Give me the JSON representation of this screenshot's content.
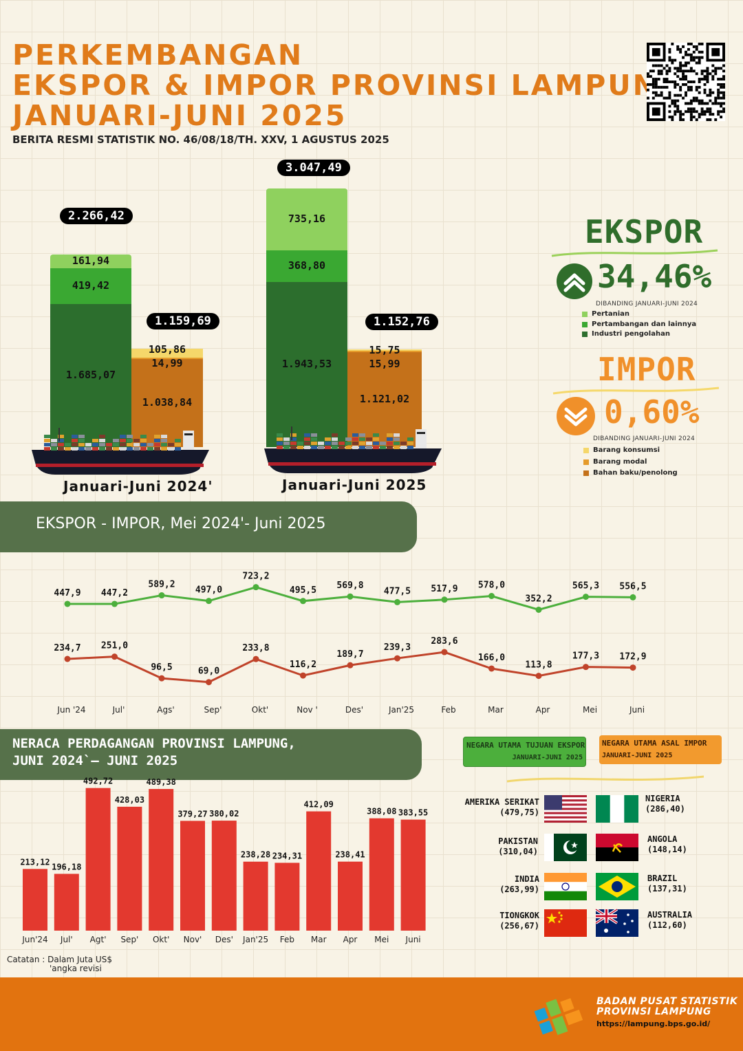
{
  "header": {
    "title_lines": [
      "PERKEMBANGAN",
      "EKSPOR & IMPOR PROVINSI LAMPUNG",
      "JANUARI-JUNI 2025"
    ],
    "subtitle": "BERITA RESMI STATISTIK NO. 46/08/18/TH. XXV, 1 AGUSTUS 2025"
  },
  "colors": {
    "title": "#e07b1a",
    "export_line": "#4caf3c",
    "import_line": "#c0432a",
    "bar": "#e3392f",
    "pertanian": "#8fd15e",
    "pertambangan": "#3aa832",
    "industri": "#2c6e2d",
    "konsumsi": "#f5d76a",
    "modal": "#e59b2b",
    "bahan_baku": "#c4711a",
    "band": "#56714a",
    "footer": "#e2730f"
  },
  "side": {
    "ekspor_title": "EKSPOR",
    "ekspor_change": "34,46%",
    "ekspor_direction": "up",
    "ekspor_note": "DIBANDING JANUARI-JUNI 2024",
    "ekspor_legend": [
      "Pertanian",
      "Pertambangan dan lainnya",
      "Industri pengolahan"
    ],
    "impor_title": "IMPOR",
    "impor_change": "0,60%",
    "impor_direction": "down",
    "impor_note": "DIBANDING JANUARI-JUNI 2024",
    "impor_legend": [
      "Barang konsumsi",
      "Barang modal",
      "Bahan baku/penolong"
    ]
  },
  "band1": {
    "title": "EKSPOR - IMPOR, Mei 2024'- Juni 2025"
  },
  "band2": {
    "title_line1": "NERACA PERDAGANGAN PROVINSI LAMPUNG,",
    "title_line2": "JUNI 2024`— JUNI 2025"
  },
  "countries": {
    "ekspor_header_line1": "NEGARA UTAMA TUJUAN EKSPOR",
    "ekspor_header_line2": "JANUARI-JUNI 2025",
    "impor_header_line1": "NEGARA UTAMA ASAL IMPOR",
    "impor_header_line2": "JANUARI-JUNI 2025",
    "ekspor": [
      {
        "name": "AMERIKA SERIKAT",
        "value": "(479,75)",
        "flag": "us-flag"
      },
      {
        "name": "PAKISTAN",
        "value": "(310,04)",
        "flag": "pakistan-flag"
      },
      {
        "name": "INDIA",
        "value": "(263,99)",
        "flag": "india-flag"
      },
      {
        "name": "TIONGKOK",
        "value": "(256,67)",
        "flag": "china-flag"
      }
    ],
    "impor": [
      {
        "name": "NIGERIA",
        "value": "(286,40)",
        "flag": "nigeria-flag"
      },
      {
        "name": "ANGOLA",
        "value": "(148,14)",
        "flag": "angola-flag"
      },
      {
        "name": "BRAZIL",
        "value": "(137,31)",
        "flag": "brazil-flag"
      },
      {
        "name": "AUSTRALIA",
        "value": "(112,60)",
        "flag": "australia-flag"
      }
    ]
  },
  "note": {
    "line1": "Catatan : Dalam Juta US$",
    "line2": "'angka revisi"
  },
  "footer": {
    "org_line1": "BADAN PUSAT STATISTIK",
    "org_line2": "PROVINSI LAMPUNG",
    "url": "https://lampung.bps.go.id/"
  },
  "chart_data": [
    {
      "type": "bar",
      "stacked": true,
      "categories": [
        "Januari-Juni 2024'",
        "Januari-Juni 2025"
      ],
      "ekspor": {
        "total_labels": [
          "2.266,42",
          "3.047,49"
        ],
        "segments": [
          {
            "key": "industri",
            "labels": [
              "1.685,07",
              "1.943,53"
            ],
            "values": [
              1685.07,
              1943.53
            ]
          },
          {
            "key": "pertambangan",
            "labels": [
              "419,42",
              "368,80"
            ],
            "values": [
              419.42,
              368.8
            ]
          },
          {
            "key": "pertanian",
            "labels": [
              "161,94",
              "735,16"
            ],
            "values": [
              161.94,
              735.16
            ]
          }
        ]
      },
      "impor": {
        "total_labels": [
          "1.159,69",
          "1.152,76"
        ],
        "segments": [
          {
            "key": "bahan_baku",
            "labels": [
              "1.038,84",
              "1.121,02"
            ],
            "values": [
              1038.84,
              1121.02
            ]
          },
          {
            "key": "modal",
            "labels": [
              "14,99",
              "15,99"
            ],
            "values": [
              14.99,
              15.99
            ]
          },
          {
            "key": "konsumsi",
            "labels": [
              "105,86",
              "15,75"
            ],
            "values": [
              105.86,
              15.75
            ]
          }
        ]
      }
    },
    {
      "type": "line",
      "categories": [
        "Jun '24",
        "Jul'",
        "Ags'",
        "Sep'",
        "Okt'",
        "Nov '",
        "Des'",
        "Jan'25",
        "Feb",
        "Mar",
        "Apr",
        "Mei",
        "Juni"
      ],
      "series": [
        {
          "key": "ekspor",
          "values": [
            447.9,
            447.2,
            589.2,
            497.0,
            723.2,
            495.5,
            569.8,
            477.5,
            517.9,
            578.0,
            352.2,
            565.3,
            556.5
          ],
          "labels": [
            "447,9",
            "447,2",
            "589,2",
            "497,0",
            "723,2",
            "495,5",
            "569,8",
            "477,5",
            "517,9",
            "578,0",
            "352,2",
            "565,3",
            "556,5"
          ]
        },
        {
          "key": "impor",
          "values": [
            234.7,
            251.0,
            96.5,
            69.0,
            233.8,
            116.2,
            189.7,
            239.3,
            283.6,
            166.0,
            113.8,
            177.3,
            172.9
          ],
          "labels": [
            "234,7",
            "251,0",
            "96,5",
            "69,0",
            "233,8",
            "116,2",
            "189,7",
            "239,3",
            "283,6",
            "166,0",
            "113,8",
            "177,3",
            "172,9"
          ]
        }
      ]
    },
    {
      "type": "bar",
      "categories": [
        "Jun'24",
        "Jul'",
        "Agt'",
        "Sep'",
        "Okt'",
        "Nov'",
        "Des'",
        "Jan'25",
        "Feb",
        "Mar",
        "Apr",
        "Mei",
        "Juni"
      ],
      "values": [
        213.12,
        196.18,
        492.72,
        428.03,
        489.38,
        379.27,
        380.02,
        238.28,
        234.31,
        412.09,
        238.41,
        388.08,
        383.55
      ],
      "labels": [
        "213,12",
        "196,18",
        "492,72",
        "428,03",
        "489,38",
        "379,27",
        "380,02",
        "238,28",
        "234,31",
        "412,09",
        "238,41",
        "388,08",
        "383,55"
      ]
    }
  ]
}
